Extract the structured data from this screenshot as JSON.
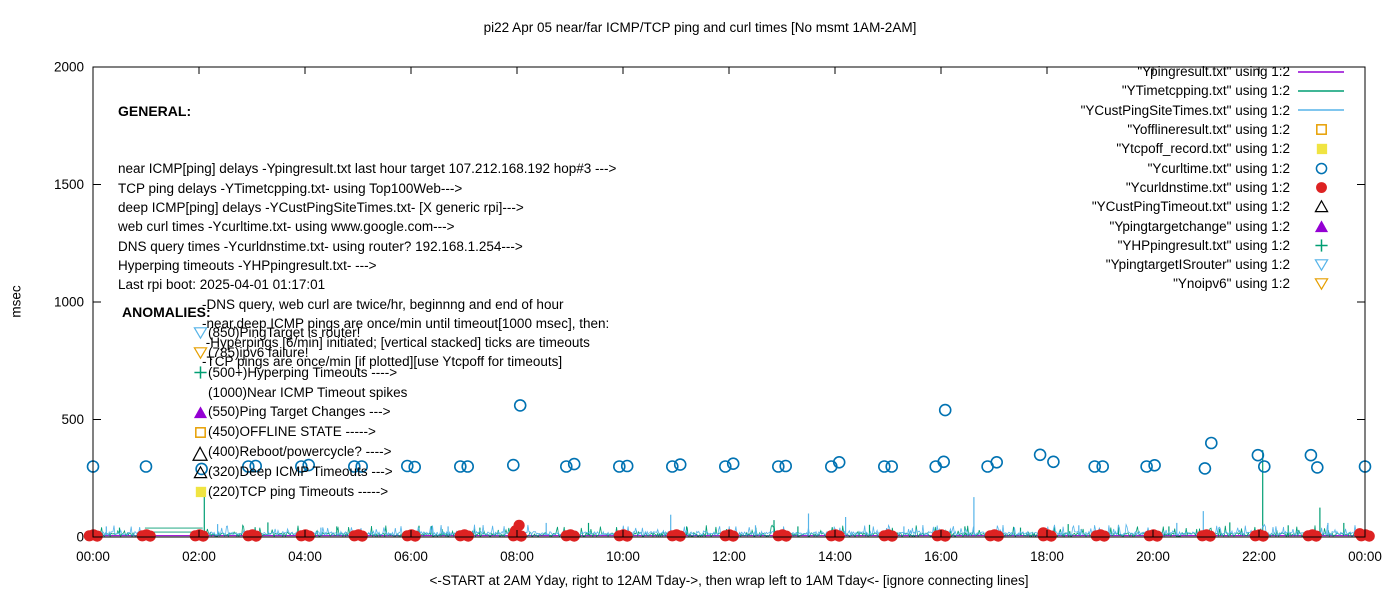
{
  "title": "pi22 Apr 05  near/far ICMP/TCP ping and curl times [No msmt 1AM-2AM]",
  "axes": {
    "y_label": "msec",
    "y_ticks": [
      0,
      500,
      1000,
      1500,
      2000
    ],
    "x_ticks": [
      "00:00",
      "02:00",
      "04:00",
      "06:00",
      "08:00",
      "10:00",
      "12:00",
      "14:00",
      "16:00",
      "18:00",
      "20:00",
      "22:00",
      "00:00"
    ],
    "x_label": "<-START at 2AM Yday, right to 12AM Tday->, then wrap left to 1AM Tday<- [ignore connecting lines]"
  },
  "general_block": {
    "heading": "GENERAL:",
    "lines": [
      "near ICMP[ping] delays -Ypingresult.txt last hour target 107.212.168.192 hop#3 --->",
      "TCP ping delays -YTimetcpping.txt- using Top100Web--->",
      "deep ICMP[ping] delays -YCustPingSiteTimes.txt- [X generic rpi]--->",
      "web curl times -Ycurltime.txt- using www.google.com--->",
      "DNS query times -Ycurldnstime.txt- using router? 192.168.1.254--->",
      "Hyperping timeouts -YHPpingresult.txt- --->",
      "Last rpi boot: 2025-04-01 01:17:01"
    ],
    "indented_lines": [
      "-DNS query, web curl are twice/hr, beginnng and end of hour",
      "-near,deep ICMP pings are once/min until timeout[1000 msec], then:",
      " -Hyperpings [6/min] initiated; [vertical stacked] ticks are timeouts",
      "-TCP pings are once/min [if plotted][use Ytcpoff for timeouts]"
    ]
  },
  "anomalies_block": {
    "heading": "ANOMALIES:",
    "items": [
      {
        "symbol": "triangle-down-open",
        "color": "#56B4E9",
        "text": "(850)PingTarget is router!"
      },
      {
        "symbol": "triangle-down-open",
        "color": "#E69F00",
        "text": "(785)ipv6 failure!"
      },
      {
        "symbol": "plus",
        "color": "#009E73",
        "text": "(500+)Hyperping Timeouts ---->"
      },
      {
        "symbol": "none",
        "color": "#000000",
        "text": "(1000)Near ICMP Timeout spikes"
      },
      {
        "symbol": "triangle-up-filled",
        "color": "#9400D3",
        "text": "(550)Ping Target Changes --->"
      },
      {
        "symbol": "square-open",
        "color": "#E69F00",
        "text": "(450)OFFLINE STATE ----->"
      },
      {
        "symbol": "none",
        "color": "#000000",
        "text": "(400)Reboot/powercycle? ---->"
      },
      {
        "symbol": "triangle-up-open",
        "color": "#000000",
        "text": "(320)Deep ICMP Timeouts --->"
      },
      {
        "symbol": "square-filled",
        "color": "#F0E442",
        "text": "(220)TCP ping Timeouts ----->"
      }
    ]
  },
  "legend": {
    "entries": [
      {
        "label": "\"Ypingresult.txt\" using 1:2",
        "symbol": "line",
        "color": "#9400D3"
      },
      {
        "label": "\"YTimetcpping.txt\" using 1:2",
        "symbol": "line",
        "color": "#009E73"
      },
      {
        "label": "\"YCustPingSiteTimes.txt\" using 1:2",
        "symbol": "line",
        "color": "#56B4E9"
      },
      {
        "label": "\"Yofflineresult.txt\" using 1:2",
        "symbol": "square-open",
        "color": "#E69F00"
      },
      {
        "label": "\"Ytcpoff_record.txt\" using 1:2",
        "symbol": "square-filled",
        "color": "#F0E442"
      },
      {
        "label": "\"Ycurltime.txt\" using 1:2",
        "symbol": "circle-open",
        "color": "#0072B2"
      },
      {
        "label": "\"Ycurldnstime.txt\" using 1:2",
        "symbol": "circle-filled",
        "color": "#DD2222"
      },
      {
        "label": "\"YCustPingTimeout.txt\" using 1:2",
        "symbol": "triangle-up-open",
        "color": "#000000"
      },
      {
        "label": "\"Ypingtargetchange\" using 1:2",
        "symbol": "triangle-up-filled",
        "color": "#9400D3"
      },
      {
        "label": "\"YHPpingresult.txt\" using 1:2",
        "symbol": "plus",
        "color": "#009E73"
      },
      {
        "label": "\"YpingtargetISrouter\" using 1:2",
        "symbol": "triangle-down-open",
        "color": "#56B4E9"
      },
      {
        "label": "\"Ynoipv6\" using 1:2",
        "symbol": "triangle-down-open",
        "color": "#E69F00"
      }
    ]
  },
  "chart_data": {
    "type": "line+scatter",
    "x_unit": "hours",
    "x_range": [
      0,
      24
    ],
    "y_range": [
      0,
      2000
    ],
    "y_tick_step": 500,
    "no_data_gap_hours": [
      1.03,
      2.05
    ],
    "series": [
      {
        "name": "Ypingresult.txt",
        "type": "line",
        "color": "#9400D3",
        "description": "near ICMP ping delays, flat baseline",
        "baseline_msec": 6
      },
      {
        "name": "YTimetcpping.txt",
        "type": "noise-line",
        "color": "#009E73",
        "description": "TCP ping delays noise band",
        "noise_base_msec": 2,
        "noise_amp_msec": 30,
        "spikes": [
          [
            0.5,
            40
          ],
          [
            2.1,
            200
          ],
          [
            3.3,
            62
          ],
          [
            4.6,
            45
          ],
          [
            6.15,
            48
          ],
          [
            7.3,
            40
          ],
          [
            9.35,
            60
          ],
          [
            11.2,
            45
          ],
          [
            12.85,
            72
          ],
          [
            13.3,
            45
          ],
          [
            14.65,
            52
          ],
          [
            16.45,
            45
          ],
          [
            17.5,
            40
          ],
          [
            18.4,
            55
          ],
          [
            19.35,
            50
          ],
          [
            20.3,
            45
          ],
          [
            21.45,
            62
          ],
          [
            22.07,
            370
          ],
          [
            22.55,
            50
          ],
          [
            23.15,
            125
          ],
          [
            23.6,
            60
          ]
        ],
        "connecting_lines_msec": [
          21,
          38
        ]
      },
      {
        "name": "YCustPingSiteTimes.txt",
        "type": "noise-line",
        "color": "#56B4E9",
        "description": "deep ICMP ping delays noise band",
        "noise_base_msec": 8,
        "noise_amp_msec": 28,
        "spikes": [
          [
            0.25,
            45
          ],
          [
            2.35,
            55
          ],
          [
            4.3,
            40
          ],
          [
            6.7,
            45
          ],
          [
            8.55,
            60
          ],
          [
            10.9,
            95
          ],
          [
            12.5,
            50
          ],
          [
            13.5,
            100
          ],
          [
            14.2,
            85
          ],
          [
            15.3,
            45
          ],
          [
            16.62,
            170
          ],
          [
            18.6,
            50
          ],
          [
            20.45,
            60
          ],
          [
            20.95,
            110
          ],
          [
            23.3,
            60
          ]
        ],
        "connecting_lines_msec": []
      },
      {
        "name": "Ycurltime.txt",
        "type": "scatter",
        "marker": "circle-open",
        "color": "#0072B2",
        "description": "web curl times, ~300 msec twice per hour",
        "points": [
          [
            0.0,
            300
          ],
          [
            1.0,
            300
          ],
          [
            2.05,
            290
          ],
          [
            2.93,
            300
          ],
          [
            3.07,
            302
          ],
          [
            3.93,
            300
          ],
          [
            4.07,
            306
          ],
          [
            4.93,
            300
          ],
          [
            5.07,
            300
          ],
          [
            5.93,
            302
          ],
          [
            6.07,
            298
          ],
          [
            6.93,
            300
          ],
          [
            7.07,
            300
          ],
          [
            7.93,
            306
          ],
          [
            8.06,
            560
          ],
          [
            8.93,
            300
          ],
          [
            9.08,
            310
          ],
          [
            9.93,
            300
          ],
          [
            10.08,
            302
          ],
          [
            10.93,
            300
          ],
          [
            11.08,
            308
          ],
          [
            11.93,
            300
          ],
          [
            12.08,
            312
          ],
          [
            12.93,
            300
          ],
          [
            13.07,
            302
          ],
          [
            13.93,
            300
          ],
          [
            14.08,
            318
          ],
          [
            14.93,
            300
          ],
          [
            15.07,
            300
          ],
          [
            15.9,
            300
          ],
          [
            16.05,
            320
          ],
          [
            16.08,
            540
          ],
          [
            16.88,
            300
          ],
          [
            17.05,
            318
          ],
          [
            17.87,
            350
          ],
          [
            18.12,
            320
          ],
          [
            18.9,
            300
          ],
          [
            19.05,
            300
          ],
          [
            19.88,
            300
          ],
          [
            20.03,
            305
          ],
          [
            20.98,
            292
          ],
          [
            21.1,
            400
          ],
          [
            21.98,
            348
          ],
          [
            22.1,
            300
          ],
          [
            22.98,
            348
          ],
          [
            23.1,
            296
          ],
          [
            24.0,
            300
          ]
        ]
      },
      {
        "name": "Ycurldnstime.txt",
        "type": "scatter-clusters",
        "marker": "circle-filled",
        "color": "#DD2222",
        "description": "DNS query times, ~5 msec clusters at each hour",
        "cluster_hours": [
          0,
          1,
          2,
          3,
          4,
          5,
          6,
          7,
          8,
          9,
          10,
          11,
          12,
          13,
          14,
          15,
          16,
          17,
          18,
          19,
          20,
          21,
          22,
          23,
          24
        ],
        "cluster_pattern": [
          [
            -0.07,
            5
          ],
          [
            0.01,
            9
          ],
          [
            0.08,
            4
          ]
        ],
        "extra_points": [
          [
            7.97,
            26
          ],
          [
            8.04,
            50
          ],
          [
            17.93,
            18
          ],
          [
            23.9,
            14
          ]
        ]
      },
      {
        "name": "YCustPingTimeout.txt",
        "type": "scatter",
        "marker": "triangle-up-open",
        "color": "#000000",
        "description": "deep ICMP timeout event",
        "points": [
          [
            2.02,
            352
          ]
        ]
      },
      {
        "name": "Yofflineresult.txt",
        "type": "scatter",
        "marker": "square-open",
        "color": "#E69F00",
        "points": []
      },
      {
        "name": "Ytcpoff_record.txt",
        "type": "scatter",
        "marker": "square-filled",
        "color": "#F0E442",
        "points": []
      },
      {
        "name": "Ypingtargetchange",
        "type": "scatter",
        "marker": "triangle-up-filled",
        "color": "#9400D3",
        "points": []
      },
      {
        "name": "YHPpingresult.txt",
        "type": "scatter",
        "marker": "plus",
        "color": "#009E73",
        "points": []
      },
      {
        "name": "YpingtargetISrouter",
        "type": "scatter",
        "marker": "triangle-down-open",
        "color": "#56B4E9",
        "points": []
      },
      {
        "name": "Ynoipv6",
        "type": "scatter",
        "marker": "triangle-down-open",
        "color": "#E69F00",
        "points": []
      }
    ]
  }
}
